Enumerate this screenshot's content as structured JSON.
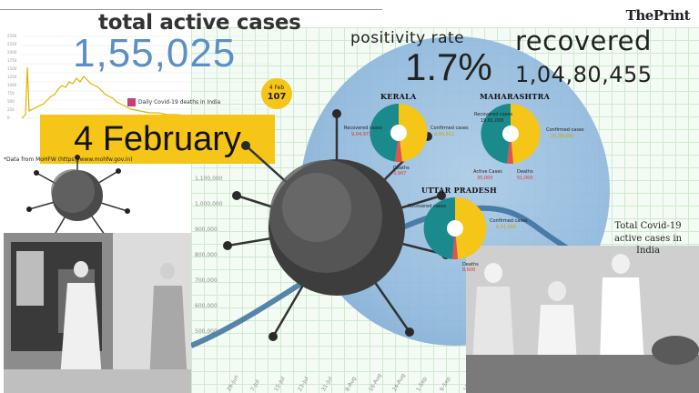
{
  "brand": "ThePrint",
  "active": {
    "title": "total active cases",
    "value": "1,55,025",
    "legend": "Daily Covid-19 deaths in India",
    "date_banner": "4 February",
    "badge_date": "4 Feb",
    "badge_value": "107"
  },
  "source_note": "*Data from MoHFW (https://www.mohfw.gov.in)",
  "positivity": {
    "label": "positivity  rate",
    "value": "1.7%"
  },
  "recovered": {
    "label": "recovered",
    "value": "1,04,80,455"
  },
  "states": [
    {
      "name": "KERALA",
      "recovered_label": "Recovered cases",
      "confirmed_label": "Confirmed cases",
      "deaths_label": "Deaths",
      "recovered_value": "9,04,971",
      "confirmed_value": "9,80,612",
      "deaths_value": "3,907"
    },
    {
      "name": "MAHARASHTRA",
      "recovered_label": "Recovered cases",
      "confirmed_label": "Confirmed cases",
      "active_label": "Active Cases",
      "deaths_label": "Deaths",
      "recovered_value": "19,61,000",
      "confirmed_value": "20,38,000",
      "active_value": "35,000",
      "deaths_value": "51,000"
    },
    {
      "name": "UTTAR PRADESH",
      "recovered_label": "Recovered cases",
      "confirmed_label": "Confirmed cases",
      "deaths_label": "Deaths",
      "confirmed_value": "6,01,000",
      "deaths_value": "8,600"
    }
  ],
  "trend": {
    "caption": "Total Covid-19 active cases in India",
    "y_ticks": [
      "1,100,000",
      "1,000,000",
      "900,000",
      "800,000",
      "700,000",
      "600,000",
      "500,000"
    ],
    "x_ticks": [
      "29-Jun",
      "7-Jul",
      "15-Jul",
      "23-Jul",
      "31-Jul",
      "8-Aug",
      "16-Aug",
      "24-Aug",
      "1-Sep",
      "9-Sep",
      "17-Sep"
    ]
  },
  "mini_chart": {
    "y_ticks": [
      "2500",
      "2250",
      "2000",
      "1750",
      "1500",
      "1250",
      "1000",
      "750",
      "500",
      "250",
      "0"
    ]
  },
  "colors": {
    "yellow": "#f5c518",
    "teal": "#1a8a8c",
    "blue": "#5b8fc7",
    "red": "#e2534a",
    "magenta": "#c83e7a"
  }
}
